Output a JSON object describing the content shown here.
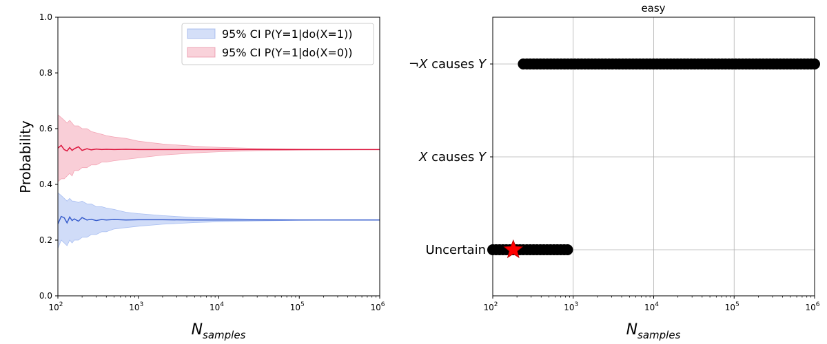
{
  "chart_data": [
    {
      "type": "line",
      "title": "",
      "xlabel": "N",
      "xlabel_sub": "samples",
      "ylabel": "Probability",
      "xscale": "log",
      "xlim": [
        100,
        1000000
      ],
      "ylim": [
        0,
        1
      ],
      "yticks": [
        "0.0",
        "0.2",
        "0.4",
        "0.6",
        "0.8",
        "1.0"
      ],
      "xticks": [
        {
          "base": "10",
          "exp": "2"
        },
        {
          "base": "10",
          "exp": "3"
        },
        {
          "base": "10",
          "exp": "4"
        },
        {
          "base": "10",
          "exp": "5"
        },
        {
          "base": "10",
          "exp": "6"
        }
      ],
      "grid": false,
      "legend_position": "top-right",
      "series": [
        {
          "name": "95% CI P(Y=1|do(X=1))",
          "color": "#3a5fcd",
          "band_color": "#a9bff2",
          "x": [
            100,
            110,
            120,
            130,
            140,
            150,
            160,
            180,
            200,
            230,
            260,
            300,
            350,
            400,
            500,
            700,
            1000,
            2000,
            5000,
            10000,
            30000,
            100000,
            300000,
            1000000
          ],
          "y": [
            0.258,
            0.285,
            0.28,
            0.262,
            0.283,
            0.27,
            0.276,
            0.268,
            0.281,
            0.272,
            0.275,
            0.27,
            0.274,
            0.272,
            0.274,
            0.272,
            0.273,
            0.273,
            0.272,
            0.272,
            0.272,
            0.272,
            0.272,
            0.272
          ],
          "ci_low": [
            0.17,
            0.2,
            0.19,
            0.18,
            0.2,
            0.19,
            0.2,
            0.2,
            0.21,
            0.21,
            0.22,
            0.22,
            0.23,
            0.23,
            0.24,
            0.245,
            0.25,
            0.257,
            0.263,
            0.266,
            0.269,
            0.271,
            0.2715,
            0.272
          ],
          "ci_high": [
            0.37,
            0.36,
            0.35,
            0.34,
            0.35,
            0.34,
            0.34,
            0.335,
            0.34,
            0.33,
            0.33,
            0.32,
            0.32,
            0.315,
            0.31,
            0.3,
            0.295,
            0.288,
            0.281,
            0.278,
            0.275,
            0.273,
            0.2725,
            0.272
          ]
        },
        {
          "name": "95% CI P(Y=1|do(X=0))",
          "color": "#dc143c",
          "band_color": "#f4a6b6",
          "x": [
            100,
            110,
            120,
            130,
            140,
            150,
            160,
            180,
            200,
            230,
            260,
            300,
            350,
            400,
            500,
            700,
            1000,
            2000,
            5000,
            10000,
            30000,
            100000,
            300000,
            1000000
          ],
          "y": [
            0.53,
            0.54,
            0.525,
            0.52,
            0.532,
            0.522,
            0.528,
            0.535,
            0.522,
            0.528,
            0.524,
            0.527,
            0.525,
            0.526,
            0.525,
            0.526,
            0.525,
            0.525,
            0.525,
            0.525,
            0.525,
            0.525,
            0.525,
            0.525
          ],
          "ci_low": [
            0.41,
            0.42,
            0.42,
            0.43,
            0.44,
            0.43,
            0.45,
            0.45,
            0.46,
            0.46,
            0.47,
            0.47,
            0.48,
            0.48,
            0.485,
            0.49,
            0.495,
            0.505,
            0.513,
            0.517,
            0.521,
            0.523,
            0.524,
            0.525
          ],
          "ci_high": [
            0.65,
            0.64,
            0.63,
            0.62,
            0.63,
            0.62,
            0.61,
            0.61,
            0.6,
            0.6,
            0.59,
            0.585,
            0.58,
            0.575,
            0.57,
            0.565,
            0.555,
            0.545,
            0.537,
            0.533,
            0.529,
            0.527,
            0.526,
            0.525
          ]
        }
      ]
    },
    {
      "type": "scatter",
      "title": "easy",
      "xlabel": "N",
      "xlabel_sub": "samples",
      "ylabel": "",
      "xscale": "log",
      "xlim": [
        100,
        1000000
      ],
      "categories": [
        "Uncertain",
        "X causes Y",
        "¬X causes Y"
      ],
      "ycat_labels": [
        {
          "pre": "",
          "var": "",
          "post": "Uncertain"
        },
        {
          "pre": "",
          "var": "X",
          "post": " causes ",
          "var2": "Y"
        },
        {
          "pre": "¬",
          "var": "X",
          "post": " causes ",
          "var2": "Y"
        }
      ],
      "xticks": [
        {
          "base": "10",
          "exp": "2"
        },
        {
          "base": "10",
          "exp": "3"
        },
        {
          "base": "10",
          "exp": "4"
        },
        {
          "base": "10",
          "exp": "5"
        },
        {
          "base": "10",
          "exp": "6"
        }
      ],
      "grid": true,
      "marker_color": "#000000",
      "star_color": "#ff0000",
      "segments": [
        {
          "category": "Uncertain",
          "x_start": 100,
          "x_end": 850
        },
        {
          "category": "¬X causes Y",
          "x_start": 240,
          "x_end": 1000000
        }
      ],
      "star": {
        "category": "Uncertain",
        "x": 180
      }
    }
  ]
}
